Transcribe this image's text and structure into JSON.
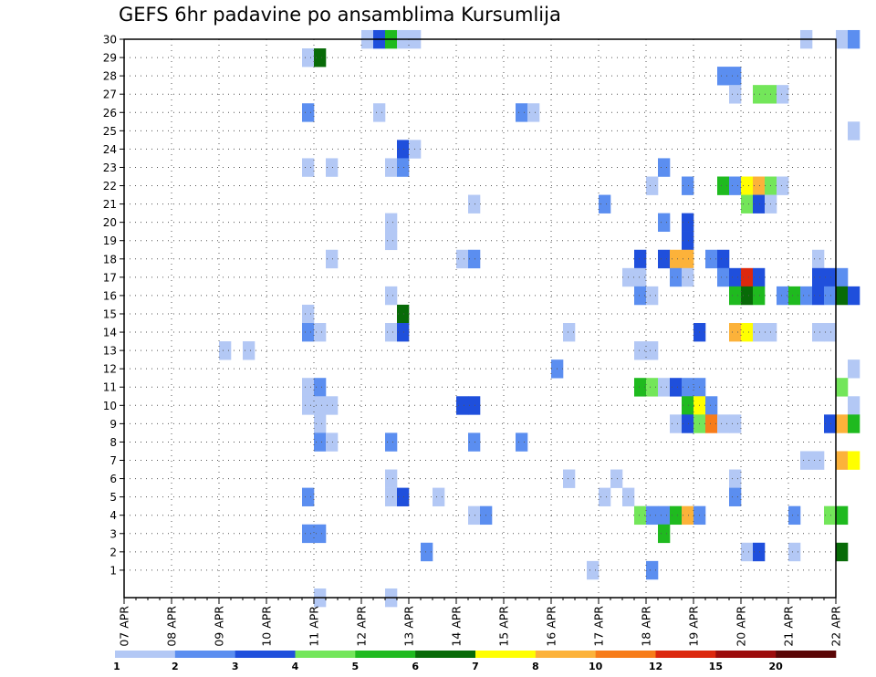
{
  "chart_data": {
    "type": "heatmap",
    "title": "GEFS 6hr padavine po ansamblima Kursumlija",
    "x_labels": [
      "07 APR",
      "08 APR",
      "09 APR",
      "10 APR",
      "11 APR",
      "12 APR",
      "13 APR",
      "14 APR",
      "15 APR",
      "16 APR",
      "17 APR",
      "18 APR",
      "19 APR",
      "20 APR",
      "21 APR",
      "22 APR"
    ],
    "y_labels": [
      "1",
      "2",
      "3",
      "4",
      "5",
      "6",
      "7",
      "8",
      "9",
      "10",
      "11",
      "12",
      "13",
      "14",
      "15",
      "16",
      "17",
      "18",
      "19",
      "20",
      "21",
      "22",
      "23",
      "24",
      "25",
      "26",
      "27",
      "28",
      "29",
      "30"
    ],
    "y_range": [
      1,
      30
    ],
    "x_step_per_day": 4,
    "grid": true,
    "colorbar": {
      "position": "bottom",
      "labels": [
        "1",
        "2",
        "3",
        "4",
        "5",
        "6",
        "7",
        "8",
        "10",
        "12",
        "15",
        "20"
      ],
      "colors": [
        "#b3c8f5",
        "#5b8ef0",
        "#1f4fdc",
        "#73e65a",
        "#1fba1f",
        "#086b08",
        "#ffff00",
        "#fcb23a",
        "#f77c1a",
        "#dc280e",
        "#9c0c0c",
        "#5a0606"
      ]
    },
    "cells": [
      [
        30,
        20,
        1
      ],
      [
        30,
        21,
        3
      ],
      [
        30,
        22,
        5
      ],
      [
        30,
        23,
        1
      ],
      [
        30,
        24,
        1
      ],
      [
        30,
        57,
        1
      ],
      [
        30,
        60,
        1
      ],
      [
        30,
        61,
        2
      ],
      [
        29,
        15,
        1
      ],
      [
        29,
        16,
        6
      ],
      [
        28,
        50,
        2
      ],
      [
        28,
        51,
        2
      ],
      [
        27,
        51,
        1
      ],
      [
        27,
        53,
        4
      ],
      [
        27,
        54,
        4
      ],
      [
        27,
        55,
        1
      ],
      [
        26,
        15,
        2
      ],
      [
        26,
        21,
        1
      ],
      [
        26,
        33,
        2
      ],
      [
        26,
        34,
        1
      ],
      [
        25,
        61,
        1
      ],
      [
        24,
        23,
        3
      ],
      [
        24,
        24,
        1
      ],
      [
        23,
        15,
        1
      ],
      [
        23,
        17,
        1
      ],
      [
        23,
        22,
        1
      ],
      [
        23,
        23,
        2
      ],
      [
        23,
        45,
        2
      ],
      [
        22,
        44,
        1
      ],
      [
        22,
        47,
        2
      ],
      [
        22,
        50,
        5
      ],
      [
        22,
        51,
        2
      ],
      [
        22,
        52,
        7
      ],
      [
        22,
        53,
        8
      ],
      [
        22,
        54,
        4
      ],
      [
        22,
        55,
        1
      ],
      [
        21,
        29,
        1
      ],
      [
        21,
        40,
        2
      ],
      [
        21,
        52,
        4
      ],
      [
        21,
        53,
        3
      ],
      [
        21,
        54,
        1
      ],
      [
        20,
        22,
        1
      ],
      [
        20,
        45,
        2
      ],
      [
        20,
        47,
        3
      ],
      [
        19,
        22,
        1
      ],
      [
        19,
        47,
        3
      ],
      [
        18,
        17,
        1
      ],
      [
        18,
        28,
        1
      ],
      [
        18,
        29,
        2
      ],
      [
        18,
        43,
        3
      ],
      [
        18,
        45,
        3
      ],
      [
        18,
        46,
        8
      ],
      [
        18,
        47,
        8
      ],
      [
        18,
        49,
        2
      ],
      [
        18,
        50,
        3
      ],
      [
        18,
        58,
        1
      ],
      [
        17,
        42,
        1
      ],
      [
        17,
        43,
        1
      ],
      [
        17,
        46,
        2
      ],
      [
        17,
        47,
        1
      ],
      [
        17,
        50,
        2
      ],
      [
        17,
        51,
        3
      ],
      [
        17,
        52,
        10
      ],
      [
        17,
        53,
        3
      ],
      [
        17,
        58,
        3
      ],
      [
        17,
        59,
        3
      ],
      [
        17,
        60,
        2
      ],
      [
        16,
        22,
        1
      ],
      [
        16,
        43,
        2
      ],
      [
        16,
        44,
        1
      ],
      [
        16,
        51,
        5
      ],
      [
        16,
        52,
        6
      ],
      [
        16,
        53,
        5
      ],
      [
        16,
        55,
        2
      ],
      [
        16,
        56,
        5
      ],
      [
        16,
        57,
        2
      ],
      [
        16,
        58,
        3
      ],
      [
        16,
        59,
        2
      ],
      [
        16,
        60,
        6
      ],
      [
        16,
        61,
        3
      ],
      [
        15,
        15,
        1
      ],
      [
        15,
        23,
        6
      ],
      [
        14,
        15,
        2
      ],
      [
        14,
        16,
        1
      ],
      [
        14,
        22,
        1
      ],
      [
        14,
        23,
        3
      ],
      [
        14,
        37,
        1
      ],
      [
        14,
        48,
        3
      ],
      [
        14,
        51,
        8
      ],
      [
        14,
        52,
        7
      ],
      [
        14,
        53,
        1
      ],
      [
        14,
        54,
        1
      ],
      [
        14,
        58,
        1
      ],
      [
        14,
        59,
        1
      ],
      [
        13,
        8,
        1
      ],
      [
        13,
        10,
        1
      ],
      [
        13,
        43,
        1
      ],
      [
        13,
        44,
        1
      ],
      [
        12,
        36,
        2
      ],
      [
        12,
        61,
        1
      ],
      [
        11,
        15,
        1
      ],
      [
        11,
        16,
        2
      ],
      [
        11,
        43,
        5
      ],
      [
        11,
        44,
        4
      ],
      [
        11,
        45,
        1
      ],
      [
        11,
        46,
        3
      ],
      [
        11,
        47,
        2
      ],
      [
        11,
        48,
        2
      ],
      [
        11,
        60,
        4
      ],
      [
        10,
        15,
        1
      ],
      [
        10,
        16,
        1
      ],
      [
        10,
        17,
        1
      ],
      [
        10,
        28,
        3
      ],
      [
        10,
        29,
        3
      ],
      [
        10,
        47,
        5
      ],
      [
        10,
        48,
        7
      ],
      [
        10,
        49,
        2
      ],
      [
        10,
        61,
        1
      ],
      [
        9,
        16,
        1
      ],
      [
        9,
        46,
        1
      ],
      [
        9,
        47,
        3
      ],
      [
        9,
        48,
        4
      ],
      [
        9,
        49,
        9
      ],
      [
        9,
        50,
        1
      ],
      [
        9,
        51,
        1
      ],
      [
        9,
        59,
        3
      ],
      [
        9,
        60,
        8
      ],
      [
        9,
        61,
        5
      ],
      [
        8,
        16,
        2
      ],
      [
        8,
        17,
        1
      ],
      [
        8,
        22,
        2
      ],
      [
        8,
        29,
        2
      ],
      [
        8,
        33,
        2
      ],
      [
        7,
        57,
        1
      ],
      [
        7,
        58,
        1
      ],
      [
        7,
        60,
        8
      ],
      [
        7,
        61,
        7
      ],
      [
        6,
        22,
        1
      ],
      [
        6,
        37,
        1
      ],
      [
        6,
        41,
        1
      ],
      [
        6,
        51,
        1
      ],
      [
        5,
        15,
        2
      ],
      [
        5,
        22,
        1
      ],
      [
        5,
        23,
        3
      ],
      [
        5,
        26,
        1
      ],
      [
        5,
        40,
        1
      ],
      [
        5,
        42,
        1
      ],
      [
        5,
        51,
        2
      ],
      [
        4,
        29,
        1
      ],
      [
        4,
        30,
        2
      ],
      [
        4,
        43,
        4
      ],
      [
        4,
        44,
        2
      ],
      [
        4,
        45,
        2
      ],
      [
        4,
        46,
        5
      ],
      [
        4,
        47,
        8
      ],
      [
        4,
        48,
        2
      ],
      [
        4,
        56,
        2
      ],
      [
        4,
        59,
        4
      ],
      [
        4,
        60,
        5
      ],
      [
        3,
        15,
        2
      ],
      [
        3,
        16,
        2
      ],
      [
        3,
        45,
        5
      ],
      [
        2,
        25,
        2
      ],
      [
        2,
        52,
        1
      ],
      [
        2,
        53,
        3
      ],
      [
        2,
        56,
        1
      ],
      [
        2,
        60,
        6
      ],
      [
        1,
        39,
        1
      ],
      [
        1,
        44,
        2
      ],
      [
        0,
        16,
        1
      ],
      [
        0,
        22,
        1
      ]
    ]
  }
}
